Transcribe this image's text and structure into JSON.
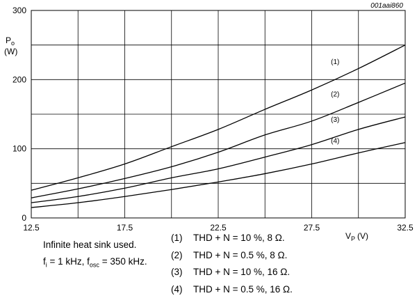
{
  "chart_data": {
    "type": "line",
    "reference_code": "001aai860",
    "ylabel": "P",
    "ylabel_sub": "o",
    "yunit": "(W)",
    "xlabel": "V",
    "xlabel_sub": "P",
    "xunit": "(V)",
    "xlim": [
      12.5,
      32.5
    ],
    "ylim": [
      0,
      300
    ],
    "xticks": [
      "12.5",
      "17.5",
      "22.5",
      "27.5",
      "32.5"
    ],
    "yticks": [
      "0",
      "100",
      "200",
      "300"
    ],
    "grid": true,
    "series": [
      {
        "name": "(1)",
        "x": [
          12.5,
          15,
          17.5,
          20,
          22.5,
          25,
          27.5,
          30,
          32.5
        ],
        "y": [
          40,
          58,
          78,
          103,
          128,
          157,
          185,
          216,
          250
        ]
      },
      {
        "name": "(2)",
        "x": [
          12.5,
          15,
          17.5,
          20,
          22.5,
          25,
          27.5,
          30,
          32.5
        ],
        "y": [
          29,
          42,
          57,
          74,
          95,
          120,
          140,
          167,
          195
        ]
      },
      {
        "name": "(3)",
        "x": [
          12.5,
          15,
          17.5,
          20,
          22.5,
          25,
          27.5,
          30,
          32.5
        ],
        "y": [
          22,
          31,
          43,
          58,
          71,
          88,
          106,
          128,
          146
        ]
      },
      {
        "name": "(4)",
        "x": [
          12.5,
          15,
          17.5,
          20,
          22.5,
          25,
          27.5,
          30,
          32.5
        ],
        "y": [
          15,
          22,
          31,
          41,
          52,
          64,
          78,
          94,
          109
        ]
      }
    ],
    "legend": [
      {
        "num": "(1)",
        "text": "THD + N = 10 %, 8 Ω."
      },
      {
        "num": "(2)",
        "text": "THD + N = 0.5 %, 8 Ω."
      },
      {
        "num": "(3)",
        "text": "THD + N = 10 %, 16 Ω."
      },
      {
        "num": "(4)",
        "text": "THD + N = 0.5 %, 16 Ω."
      }
    ],
    "notes": {
      "line1": "Infinite heat sink used.",
      "line2_a": "f",
      "line2_a_sub": "i",
      "line2_b": " = 1 kHz, f",
      "line2_b_sub": "osc",
      "line2_c": " = 350 kHz."
    }
  }
}
